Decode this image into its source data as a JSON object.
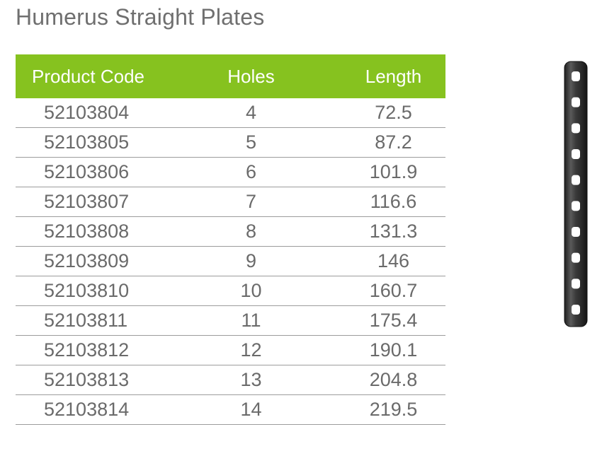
{
  "page": {
    "title": "Humerus Straight Plates"
  },
  "table": {
    "headers": {
      "code": "Product Code",
      "holes": "Holes",
      "length": "Length"
    },
    "header_color": "#86c21f",
    "rows": [
      {
        "code": "52103804",
        "holes": "4",
        "length": "72.5"
      },
      {
        "code": "52103805",
        "holes": "5",
        "length": "87.2"
      },
      {
        "code": "52103806",
        "holes": "6",
        "length": "101.9"
      },
      {
        "code": "52103807",
        "holes": "7",
        "length": "116.6"
      },
      {
        "code": "52103808",
        "holes": "8",
        "length": "131.3"
      },
      {
        "code": "52103809",
        "holes": "9",
        "length": "146"
      },
      {
        "code": "52103810",
        "holes": "10",
        "length": "160.7"
      },
      {
        "code": "52103811",
        "holes": "11",
        "length": "175.4"
      },
      {
        "code": "52103812",
        "holes": "12",
        "length": "190.1"
      },
      {
        "code": "52103813",
        "holes": "13",
        "length": "204.8"
      },
      {
        "code": "52103814",
        "holes": "14",
        "length": "219.5"
      }
    ]
  },
  "product_image": {
    "icon": "bone-plate-icon",
    "holes": 10
  }
}
